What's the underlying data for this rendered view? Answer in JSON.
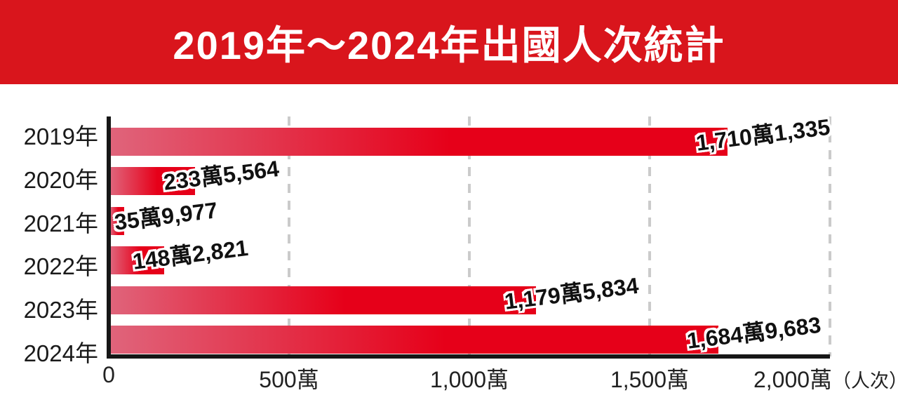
{
  "title_banner": {
    "title": "2019年～2024年出國人次統計",
    "bg_color": "#d9151c",
    "text_color": "#ffffff"
  },
  "chart_data": {
    "type": "bar",
    "orientation": "horizontal",
    "title": "2019年～2024年出國人次統計",
    "categories": [
      "2019年",
      "2020年",
      "2021年",
      "2022年",
      "2023年",
      "2024年"
    ],
    "values": [
      17101335,
      2335564,
      359977,
      1482821,
      11795834,
      16849683
    ],
    "value_labels": [
      "1,710萬1,335",
      "233萬5,564",
      "35萬9,977",
      "148萬2,821",
      "1,179萬5,834",
      "1,684萬9,683"
    ],
    "x_axis": {
      "tick_labels": [
        "0",
        "500萬",
        "1,000萬",
        "1,500萬",
        "2,000萬"
      ],
      "tick_values": [
        0,
        5000000,
        10000000,
        15000000,
        20000000
      ],
      "unit_label": "（人次）",
      "range": [
        0,
        20000000
      ]
    },
    "grid": "dashed-vertical-behind-bars",
    "legend": "none",
    "colors": {
      "bar_gradient_start": "#e0647b",
      "bar_gradient_end": "#e60019",
      "axis": "#161616",
      "gridline": "#cbcbcb",
      "value_text": "#111111",
      "value_outline": "#ffffff"
    }
  }
}
